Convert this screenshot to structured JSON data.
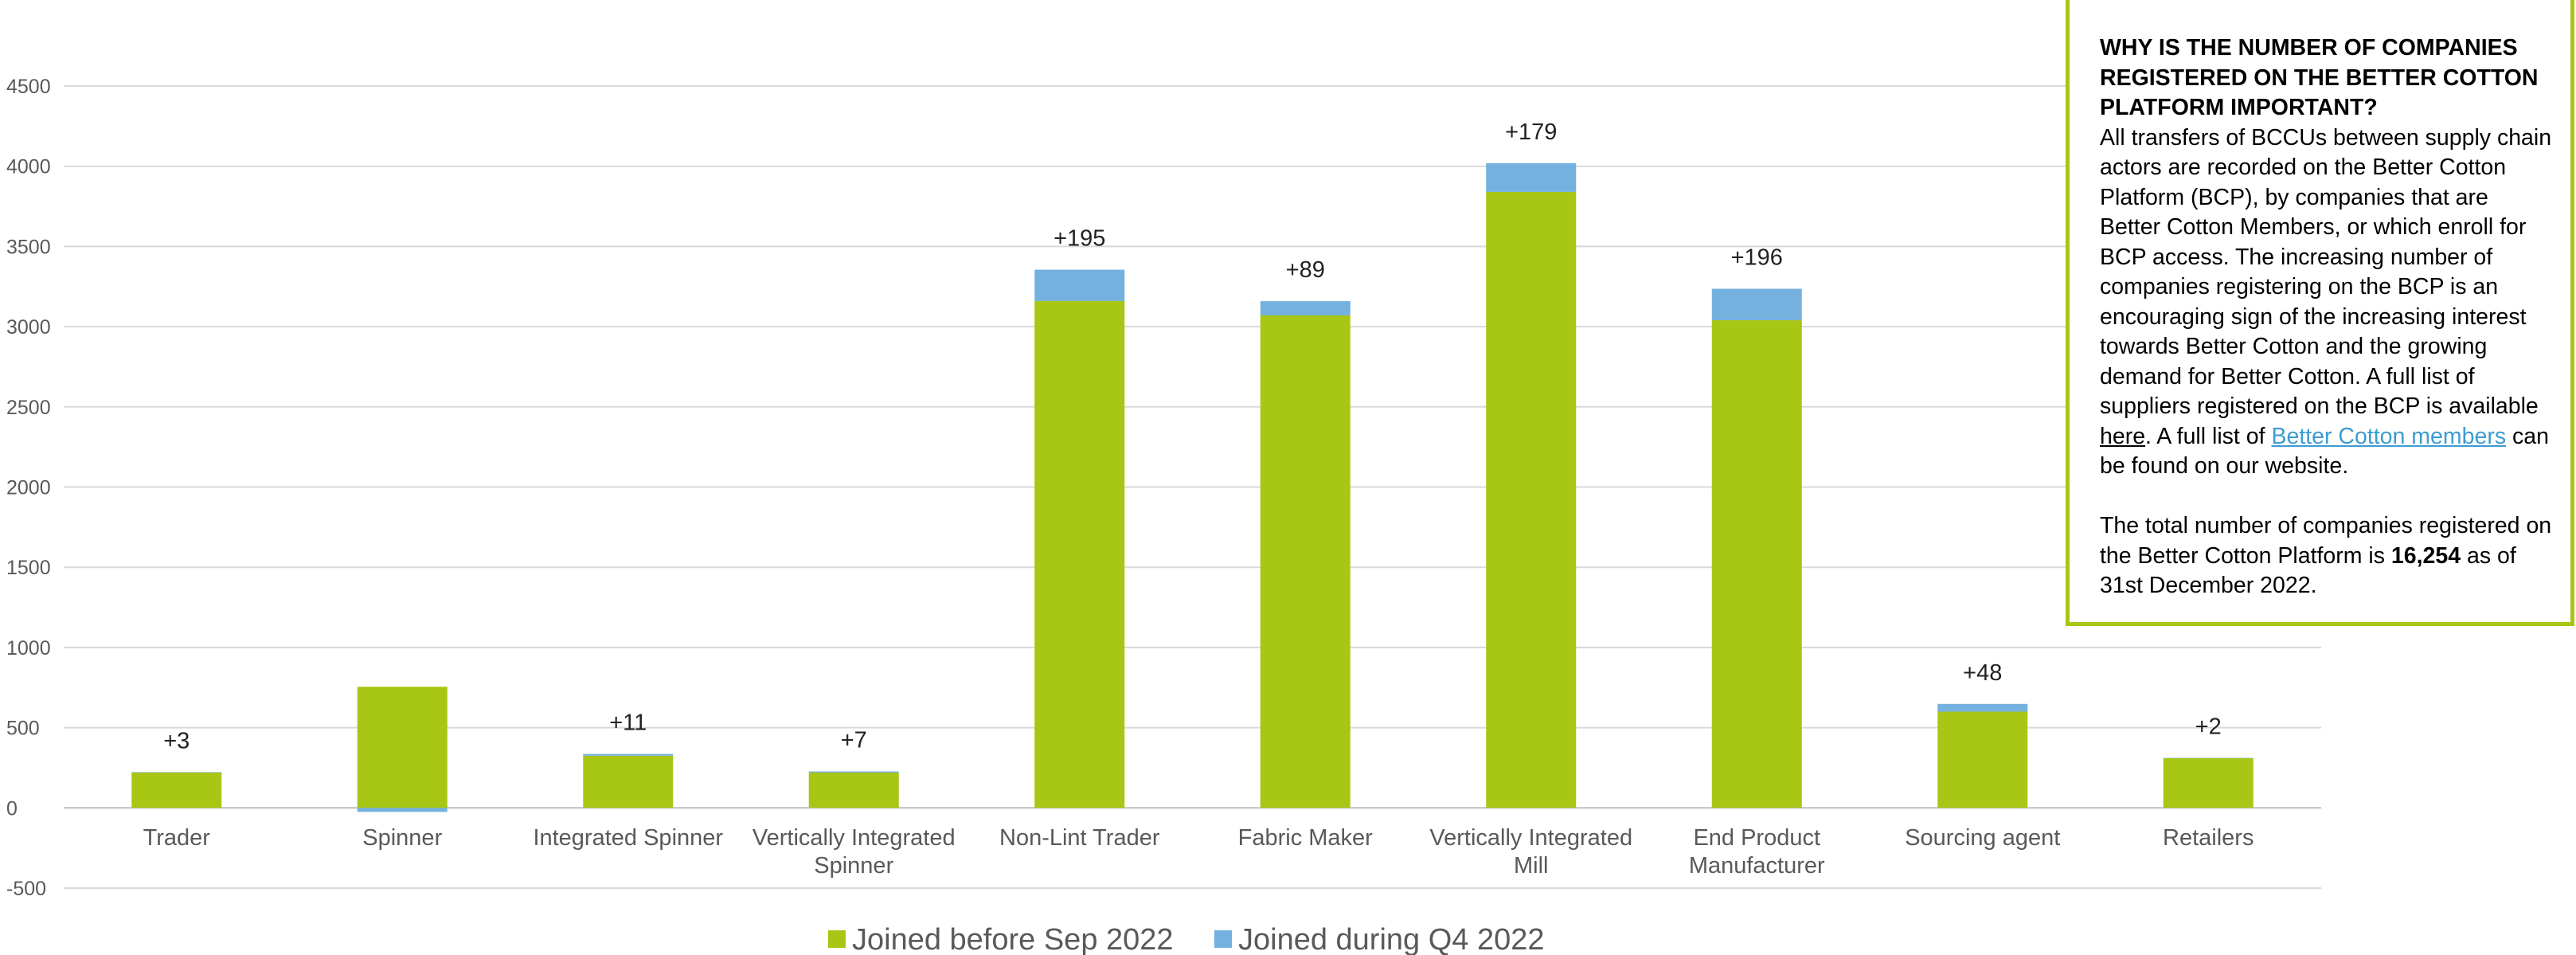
{
  "chart_data": {
    "type": "bar",
    "stacked": true,
    "categories": [
      "Trader",
      "Spinner",
      "Integrated Spinner",
      "Vertically Integrated Spinner",
      "Non-Lint Trader",
      "Fabric Maker",
      "Vertically Integrated Mill",
      "End Product Manufacturer",
      "Sourcing agent",
      "Retailers"
    ],
    "category_lines": [
      [
        "Trader"
      ],
      [
        "Spinner"
      ],
      [
        "Integrated Spinner"
      ],
      [
        "Vertically Integrated",
        "Spinner"
      ],
      [
        "Non-Lint Trader"
      ],
      [
        "Fabric Maker"
      ],
      [
        "Vertically Integrated",
        "Mill"
      ],
      [
        "End Product",
        "Manufacturer"
      ],
      [
        "Sourcing agent"
      ],
      [
        "Retailers"
      ]
    ],
    "series": [
      {
        "name": "Joined before Sep 2022",
        "color": "#a8c614",
        "values": [
          220,
          755,
          325,
          220,
          3160,
          3070,
          3840,
          3040,
          600,
          310
        ]
      },
      {
        "name": "Joined during Q4 2022",
        "color": "#74b1de",
        "values": [
          3,
          -25,
          11,
          7,
          195,
          89,
          179,
          196,
          48,
          2
        ]
      }
    ],
    "data_labels": [
      "+3",
      "",
      "+11",
      "+7",
      "+195",
      "+89",
      "+179",
      "+196",
      "+48",
      "+2"
    ],
    "ylim": [
      -500,
      4500
    ],
    "yticks": [
      -500,
      0,
      500,
      1000,
      1500,
      2000,
      2500,
      3000,
      3500,
      4000,
      4500
    ],
    "grid": true,
    "legend_position": "bottom",
    "title": "",
    "xlabel": "",
    "ylabel": ""
  },
  "info": {
    "heading": "WHY IS THE NUMBER OF COMPANIES REGISTERED ON THE BETTER COTTON PLATFORM IMPORTANT?",
    "body_part1": "All transfers of BCCUs between supply chain actors are recorded on the Better Cotton Platform (BCP), by companies that are Better Cotton Members, or which enroll for BCP access. The increasing number of companies registering on the BCP is an encouraging sign of the increasing interest towards Better Cotton and the growing demand for Better Cotton. A full list of suppliers registered on the BCP is available ",
    "link_here": "here",
    "body_part2": ". A full list of ",
    "link_members": "Better Cotton members",
    "body_part3": " can be found on our website.",
    "total_prefix": "The total number of companies registered on the Better Cotton Platform is ",
    "total_value": "16,254",
    "total_suffix": " as of 31st December 2022."
  }
}
